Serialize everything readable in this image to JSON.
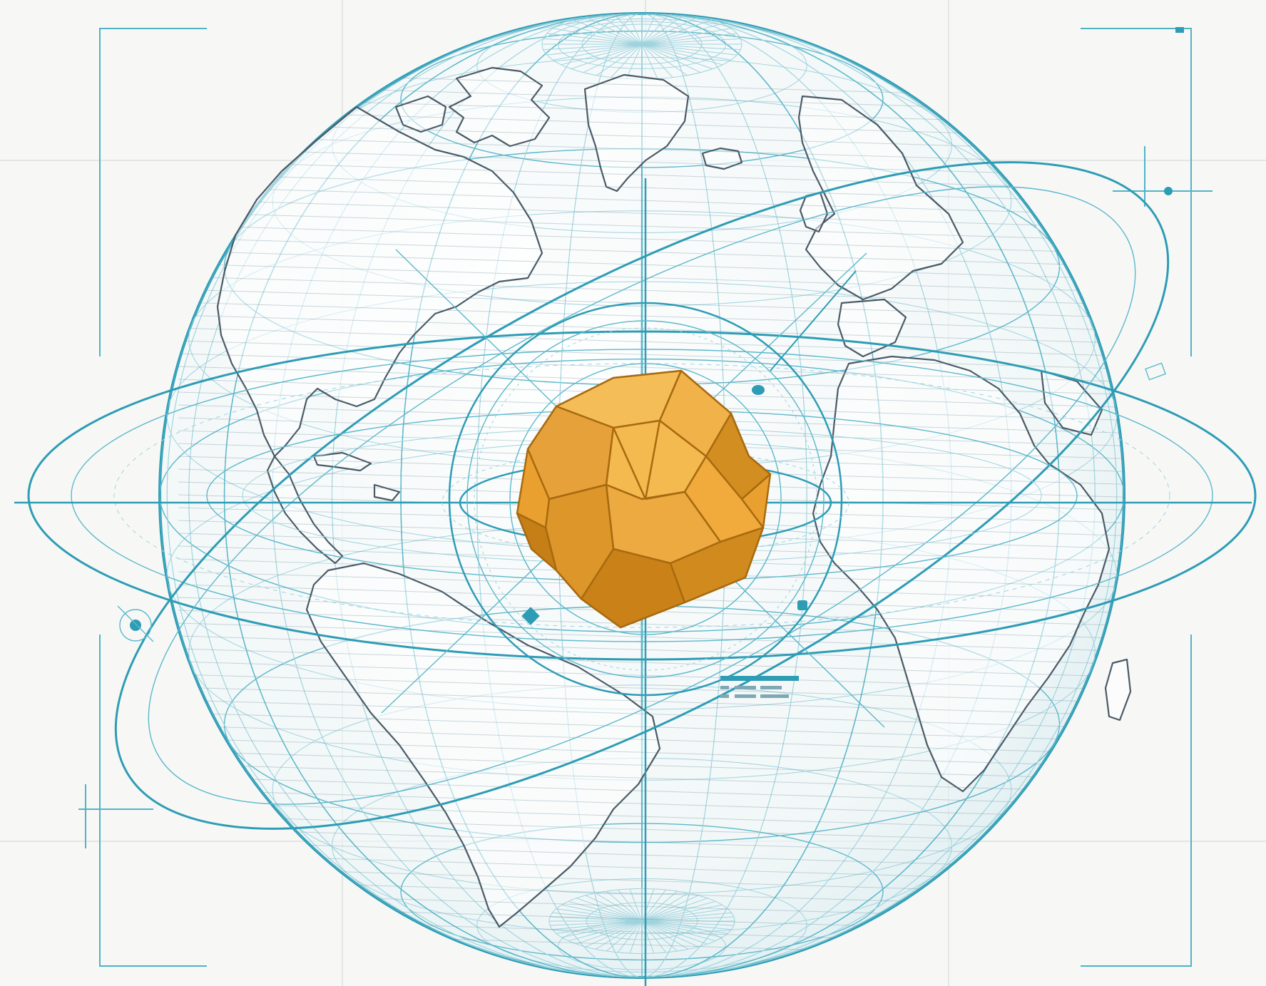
{
  "figure": {
    "kind": "wireframe globe with central polyhedron",
    "colors": {
      "background": "#f7f8f6",
      "wireframe": "#2e9cb5",
      "wireframe_light": "#5cb8cb",
      "landmass_outline": "#4a5a66",
      "polyhedron_light": "#f2b24a",
      "polyhedron_mid": "#e9a02e",
      "polyhedron_dark": "#c98118",
      "polyhedron_edge": "#a86a10"
    },
    "icons": [
      "globe-icon",
      "polyhedron-icon",
      "orbit-ring-icon",
      "node-marker-icon"
    ]
  }
}
